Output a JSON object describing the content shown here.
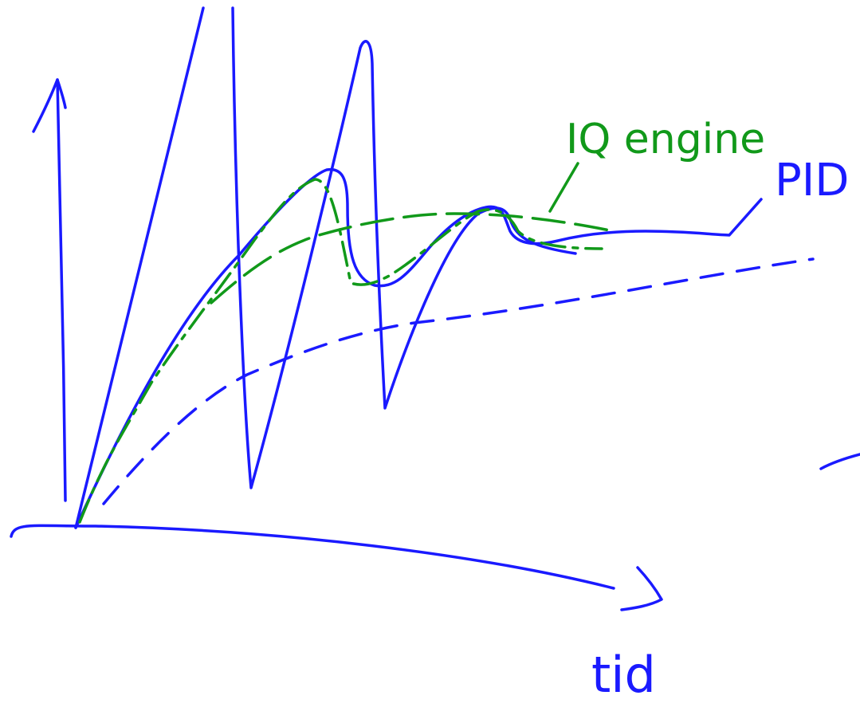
{
  "labels": {
    "iq_engine": "IQ engine",
    "pid": "PID",
    "time_axis": "tid"
  }
}
